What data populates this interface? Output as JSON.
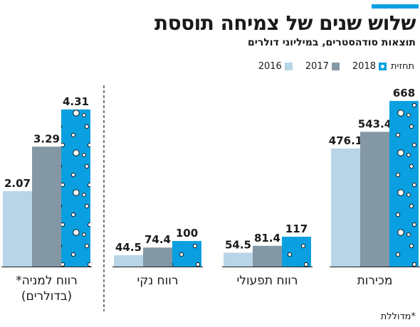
{
  "header": {
    "title": "שלוש שנים של צמיחה תוססת",
    "subtitle": "תוצאות סודהסטרים, במיליוני דולרים"
  },
  "legend": {
    "forecast_label": "תחזית",
    "items": [
      {
        "label": "2018",
        "color": "#0a9fe0"
      },
      {
        "label": "2017",
        "color": "#8497a5"
      },
      {
        "label": "2016",
        "color": "#b8d5e8"
      }
    ]
  },
  "footnote": "*מדוללת",
  "colors": {
    "accent": "#0a9fe0",
    "y2018": "#0a9fe0",
    "y2017": "#8497a5",
    "y2016": "#b8d5e8",
    "dots": "#ffffff",
    "dot_stroke": "#1a1a1a"
  },
  "chart_data": [
    {
      "type": "bar",
      "categories": [
        "מכירות"
      ],
      "series": [
        {
          "name": "2016",
          "values": [
            476.1
          ],
          "labels": [
            "476.1"
          ]
        },
        {
          "name": "2017",
          "values": [
            543.4
          ],
          "labels": [
            "543.4"
          ]
        },
        {
          "name": "2018",
          "values": [
            668
          ],
          "labels": [
            "668"
          ]
        }
      ]
    },
    {
      "type": "bar",
      "categories": [
        "רווח תפעולי"
      ],
      "series": [
        {
          "name": "2016",
          "values": [
            54.5
          ],
          "labels": [
            "54.5"
          ]
        },
        {
          "name": "2017",
          "values": [
            81.4
          ],
          "labels": [
            "81.4"
          ]
        },
        {
          "name": "2018",
          "values": [
            117
          ],
          "labels": [
            "117"
          ]
        }
      ]
    },
    {
      "type": "bar",
      "categories": [
        "רווח נקי"
      ],
      "series": [
        {
          "name": "2016",
          "values": [
            44.5
          ],
          "labels": [
            "44.5"
          ]
        },
        {
          "name": "2017",
          "values": [
            74.4
          ],
          "labels": [
            "74.4"
          ]
        },
        {
          "name": "2018",
          "values": [
            100
          ],
          "labels": [
            "100"
          ]
        }
      ]
    },
    {
      "type": "bar",
      "categories": [
        "רווח למניה* (בדולרים)"
      ],
      "category_lines": [
        "רווח למניה*",
        "(בדולרים)"
      ],
      "series": [
        {
          "name": "2016",
          "values": [
            2.07
          ],
          "labels": [
            "2.07"
          ]
        },
        {
          "name": "2017",
          "values": [
            3.29
          ],
          "labels": [
            "3.29"
          ]
        },
        {
          "name": "2018",
          "values": [
            4.31
          ],
          "labels": [
            "4.31"
          ]
        }
      ]
    }
  ]
}
